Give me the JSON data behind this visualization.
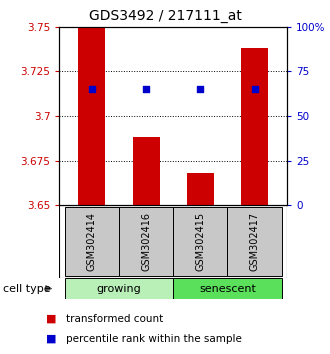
{
  "title": "GDS3492 / 217111_at",
  "samples": [
    "GSM302414",
    "GSM302416",
    "GSM302415",
    "GSM302417"
  ],
  "bar_values": [
    3.75,
    3.688,
    3.668,
    3.738
  ],
  "percentile_values": [
    65,
    65,
    65,
    65
  ],
  "ylim_left": [
    3.65,
    3.75
  ],
  "ylim_right": [
    0,
    100
  ],
  "yticks_left": [
    3.65,
    3.675,
    3.7,
    3.725,
    3.75
  ],
  "yticks_right": [
    0,
    25,
    50,
    75,
    100
  ],
  "ytick_labels_left": [
    "3.65",
    "3.675",
    "3.7",
    "3.725",
    "3.75"
  ],
  "ytick_labels_right": [
    "0",
    "25",
    "50",
    "75",
    "100%"
  ],
  "bar_color": "#cc0000",
  "scatter_color": "#0000cc",
  "bar_width": 0.5,
  "groups": [
    {
      "label": "growing",
      "color": "#99ee99"
    },
    {
      "label": "senescent",
      "color": "#44dd44"
    }
  ],
  "group_colors": [
    "#b8f0b8",
    "#5ae05a"
  ],
  "cell_type_label": "cell type",
  "legend_bar_label": "transformed count",
  "legend_scatter_label": "percentile rank within the sample",
  "background_color": "#ffffff",
  "plot_background": "#ffffff",
  "sample_box_color": "#c8c8c8",
  "title_fontsize": 10,
  "tick_fontsize": 7.5,
  "sample_fontsize": 7,
  "group_fontsize": 8,
  "legend_fontsize": 7.5
}
